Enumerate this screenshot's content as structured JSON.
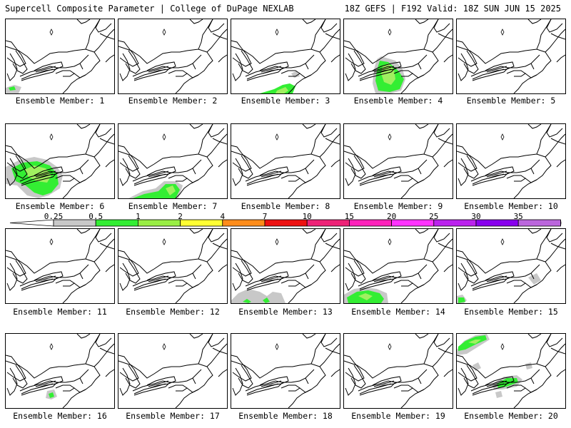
{
  "header": {
    "title_left": "Supercell Composite Parameter | College of DuPage NEXLAB",
    "title_right": "18Z GEFS | F192 Valid: 18Z SUN JUN 15 2025"
  },
  "colors": {
    "gray": "#c8c8c8",
    "green": "#33ee33",
    "lightgreen": "#a0f060",
    "coast": "#000000"
  },
  "legend": {
    "thresholds": [
      "0.25",
      "0.5",
      "1",
      "2",
      "4",
      "7",
      "10",
      "15",
      "20",
      "25",
      "30",
      "35"
    ],
    "colors": [
      "#c8c8c8",
      "#33ee33",
      "#99ee44",
      "#ffff33",
      "#ff8c1a",
      "#ee1111",
      "#ee2277",
      "#ff22bb",
      "#ff33ff",
      "#bb22ee",
      "#8800ee",
      "#bb66dd",
      "#33e8e8"
    ]
  },
  "members": [
    {
      "label": "Ensemble Member: 1",
      "blobs": [
        {
          "c": "gray",
          "pts": [
            [
              0,
              96
            ],
            [
              12,
              92
            ],
            [
              22,
              95
            ],
            [
              18,
              104
            ],
            [
              0,
              104
            ]
          ]
        },
        {
          "c": "green",
          "pts": [
            [
              4,
              96
            ],
            [
              12,
              94
            ],
            [
              14,
              99
            ],
            [
              6,
              100
            ]
          ]
        }
      ]
    },
    {
      "label": "Ensemble Member: 2",
      "blobs": []
    },
    {
      "label": "Ensemble Member: 3",
      "blobs": [
        {
          "c": "gray",
          "pts": [
            [
              84,
              76
            ],
            [
              92,
              72
            ],
            [
              96,
              80
            ],
            [
              88,
              82
            ]
          ]
        },
        {
          "c": "green",
          "pts": [
            [
              40,
              104
            ],
            [
              60,
              98
            ],
            [
              72,
              92
            ],
            [
              82,
              90
            ],
            [
              90,
              94
            ],
            [
              86,
              104
            ]
          ]
        },
        {
          "c": "lightgreen",
          "pts": [
            [
              64,
              100
            ],
            [
              76,
              95
            ],
            [
              80,
              100
            ],
            [
              74,
              104
            ],
            [
              62,
              104
            ]
          ]
        }
      ]
    },
    {
      "label": "Ensemble Member: 4",
      "blobs": [
        {
          "c": "gray",
          "pts": [
            [
              42,
              70
            ],
            [
              46,
              56
            ],
            [
              52,
              52
            ],
            [
              72,
              58
            ],
            [
              82,
              70
            ],
            [
              86,
              84
            ],
            [
              80,
              100
            ],
            [
              66,
              104
            ],
            [
              44,
              104
            ],
            [
              40,
              90
            ]
          ]
        },
        {
          "c": "green",
          "pts": [
            [
              46,
              72
            ],
            [
              50,
              58
            ],
            [
              62,
              60
            ],
            [
              76,
              72
            ],
            [
              84,
              84
            ],
            [
              78,
              98
            ],
            [
              64,
              102
            ],
            [
              48,
              100
            ],
            [
              44,
              86
            ]
          ]
        },
        {
          "c": "lightgreen",
          "pts": [
            [
              54,
              66
            ],
            [
              62,
              62
            ],
            [
              70,
              70
            ],
            [
              72,
              84
            ],
            [
              66,
              92
            ],
            [
              56,
              88
            ],
            [
              52,
              76
            ]
          ]
        }
      ]
    },
    {
      "label": "Ensemble Member: 5",
      "blobs": []
    },
    {
      "label": "Ensemble Member: 6",
      "blobs": [
        {
          "c": "gray",
          "pts": [
            [
              0,
              60
            ],
            [
              20,
              50
            ],
            [
              40,
              46
            ],
            [
              58,
              50
            ],
            [
              72,
              60
            ],
            [
              80,
              72
            ],
            [
              76,
              90
            ],
            [
              60,
              100
            ],
            [
              46,
              104
            ],
            [
              30,
              100
            ],
            [
              16,
              86
            ],
            [
              0,
              84
            ]
          ]
        },
        {
          "c": "green",
          "pts": [
            [
              8,
              62
            ],
            [
              24,
              54
            ],
            [
              44,
              52
            ],
            [
              62,
              58
            ],
            [
              72,
              70
            ],
            [
              74,
              84
            ],
            [
              64,
              96
            ],
            [
              52,
              100
            ],
            [
              40,
              96
            ],
            [
              28,
              86
            ],
            [
              14,
              80
            ]
          ]
        },
        {
          "c": "lightgreen",
          "pts": [
            [
              26,
              64
            ],
            [
              40,
              58
            ],
            [
              56,
              62
            ],
            [
              64,
              72
            ],
            [
              58,
              82
            ],
            [
              44,
              80
            ],
            [
              32,
              74
            ]
          ]
        }
      ]
    },
    {
      "label": "Ensemble Member: 7",
      "blobs": [
        {
          "c": "gray",
          "pts": [
            [
              14,
              104
            ],
            [
              34,
              94
            ],
            [
              52,
              90
            ],
            [
              64,
              80
            ],
            [
              80,
              80
            ],
            [
              90,
              86
            ],
            [
              84,
              104
            ]
          ]
        },
        {
          "c": "green",
          "pts": [
            [
              20,
              104
            ],
            [
              36,
              98
            ],
            [
              56,
              94
            ],
            [
              66,
              84
            ],
            [
              80,
              84
            ],
            [
              86,
              92
            ],
            [
              80,
              104
            ]
          ]
        },
        {
          "c": "lightgreen",
          "pts": [
            [
              66,
              90
            ],
            [
              76,
              86
            ],
            [
              80,
              94
            ],
            [
              72,
              100
            ]
          ]
        }
      ]
    },
    {
      "label": "Ensemble Member: 8",
      "blobs": []
    },
    {
      "label": "Ensemble Member: 9",
      "blobs": []
    },
    {
      "label": "Ensemble Member: 10",
      "blobs": []
    },
    {
      "label": "Ensemble Member: 11",
      "blobs": []
    },
    {
      "label": "Ensemble Member: 12",
      "blobs": []
    },
    {
      "label": "Ensemble Member: 13",
      "blobs": [
        {
          "c": "gray",
          "pts": [
            [
              0,
              100
            ],
            [
              10,
              90
            ],
            [
              24,
              84
            ],
            [
              40,
              88
            ],
            [
              50,
              94
            ],
            [
              58,
              88
            ],
            [
              70,
              90
            ],
            [
              76,
              104
            ],
            [
              0,
              104
            ]
          ]
        },
        {
          "c": "green",
          "pts": [
            [
              16,
              102
            ],
            [
              22,
              98
            ],
            [
              28,
              102
            ],
            [
              24,
              104
            ]
          ]
        },
        {
          "c": "green",
          "pts": [
            [
              44,
              100
            ],
            [
              50,
              96
            ],
            [
              54,
              102
            ],
            [
              48,
              104
            ]
          ]
        }
      ]
    },
    {
      "label": "Ensemble Member: 14",
      "blobs": [
        {
          "c": "gray",
          "pts": [
            [
              0,
              92
            ],
            [
              14,
              84
            ],
            [
              30,
              82
            ],
            [
              46,
              84
            ],
            [
              60,
              90
            ],
            [
              62,
              104
            ],
            [
              0,
              104
            ]
          ]
        },
        {
          "c": "green",
          "pts": [
            [
              4,
              96
            ],
            [
              18,
              88
            ],
            [
              34,
              86
            ],
            [
              50,
              90
            ],
            [
              56,
              98
            ],
            [
              52,
              104
            ],
            [
              6,
              104
            ]
          ]
        },
        {
          "c": "lightgreen",
          "pts": [
            [
              20,
              94
            ],
            [
              30,
              90
            ],
            [
              40,
              94
            ],
            [
              32,
              100
            ]
          ]
        }
      ]
    },
    {
      "label": "Ensemble Member: 15",
      "blobs": [
        {
          "c": "gray",
          "pts": [
            [
              0,
              94
            ],
            [
              8,
              92
            ],
            [
              14,
              100
            ],
            [
              10,
              104
            ],
            [
              0,
              104
            ]
          ]
        },
        {
          "c": "green",
          "pts": [
            [
              2,
              96
            ],
            [
              10,
              96
            ],
            [
              12,
              102
            ],
            [
              2,
              104
            ]
          ]
        },
        {
          "c": "gray",
          "pts": [
            [
              100,
              68
            ],
            [
              112,
              62
            ],
            [
              118,
              72
            ],
            [
              108,
              78
            ]
          ]
        }
      ]
    },
    {
      "label": "Ensemble Member: 16",
      "blobs": [
        {
          "c": "gray",
          "pts": [
            [
              58,
              80
            ],
            [
              68,
              78
            ],
            [
              72,
              88
            ],
            [
              64,
              92
            ],
            [
              56,
              90
            ]
          ]
        },
        {
          "c": "green",
          "pts": [
            [
              60,
              84
            ],
            [
              66,
              82
            ],
            [
              68,
              88
            ],
            [
              62,
              90
            ]
          ]
        }
      ]
    },
    {
      "label": "Ensemble Member: 17",
      "blobs": []
    },
    {
      "label": "Ensemble Member: 18",
      "blobs": []
    },
    {
      "label": "Ensemble Member: 19",
      "blobs": []
    },
    {
      "label": "Ensemble Member: 20",
      "blobs": [
        {
          "c": "gray",
          "pts": [
            [
              0,
              22
            ],
            [
              10,
              10
            ],
            [
              26,
              2
            ],
            [
              42,
              0
            ],
            [
              46,
              8
            ],
            [
              30,
              18
            ],
            [
              14,
              28
            ],
            [
              0,
              30
            ]
          ]
        },
        {
          "c": "green",
          "pts": [
            [
              2,
              18
            ],
            [
              12,
              10
            ],
            [
              26,
              4
            ],
            [
              40,
              2
            ],
            [
              42,
              8
            ],
            [
              28,
              14
            ],
            [
              12,
              22
            ],
            [
              2,
              24
            ]
          ]
        },
        {
          "c": "lightgreen",
          "pts": [
            [
              16,
              12
            ],
            [
              26,
              8
            ],
            [
              34,
              8
            ],
            [
              26,
              14
            ]
          ]
        },
        {
          "c": "gray",
          "pts": [
            [
              50,
              70
            ],
            [
              66,
              60
            ],
            [
              84,
              58
            ],
            [
              92,
              64
            ],
            [
              84,
              74
            ],
            [
              64,
              78
            ],
            [
              52,
              78
            ]
          ]
        },
        {
          "c": "green",
          "pts": [
            [
              56,
              70
            ],
            [
              70,
              62
            ],
            [
              84,
              62
            ],
            [
              86,
              68
            ],
            [
              70,
              74
            ],
            [
              58,
              76
            ]
          ]
        },
        {
          "c": "gray",
          "pts": [
            [
              22,
              44
            ],
            [
              30,
              40
            ],
            [
              34,
              48
            ],
            [
              26,
              52
            ]
          ]
        },
        {
          "c": "gray",
          "pts": [
            [
              54,
              82
            ],
            [
              62,
              80
            ],
            [
              64,
              88
            ],
            [
              56,
              90
            ]
          ]
        },
        {
          "c": "gray",
          "pts": [
            [
              96,
              42
            ],
            [
              104,
              40
            ],
            [
              106,
              48
            ],
            [
              98,
              50
            ]
          ]
        }
      ]
    }
  ]
}
